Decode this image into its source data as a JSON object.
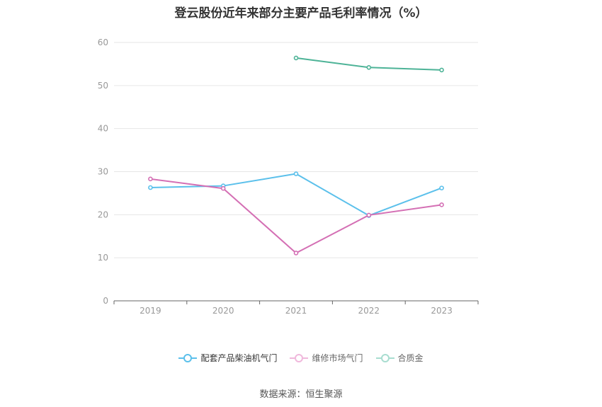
{
  "chart_data": {
    "type": "line",
    "title": "登云股份近年来部分主要产品毛利率情况（%）",
    "categories": [
      "2019",
      "2020",
      "2021",
      "2022",
      "2023"
    ],
    "ylim": [
      0,
      60
    ],
    "yticks": [
      0,
      10,
      20,
      30,
      40,
      50,
      60
    ],
    "grid": true,
    "legend_position": "bottom",
    "series": [
      {
        "name": "配套产品柴油机气门",
        "color": "#5bc0eb",
        "values": [
          26.3,
          26.7,
          29.5,
          19.8,
          26.2
        ]
      },
      {
        "name": "维修市场气门",
        "color": "#d46fb4",
        "values": [
          28.3,
          26.1,
          11.1,
          19.9,
          22.3
        ]
      },
      {
        "name": "合质金",
        "color": "#4db397",
        "values": [
          null,
          null,
          56.4,
          54.2,
          53.6
        ]
      }
    ]
  },
  "source": "数据来源：恒生聚源"
}
